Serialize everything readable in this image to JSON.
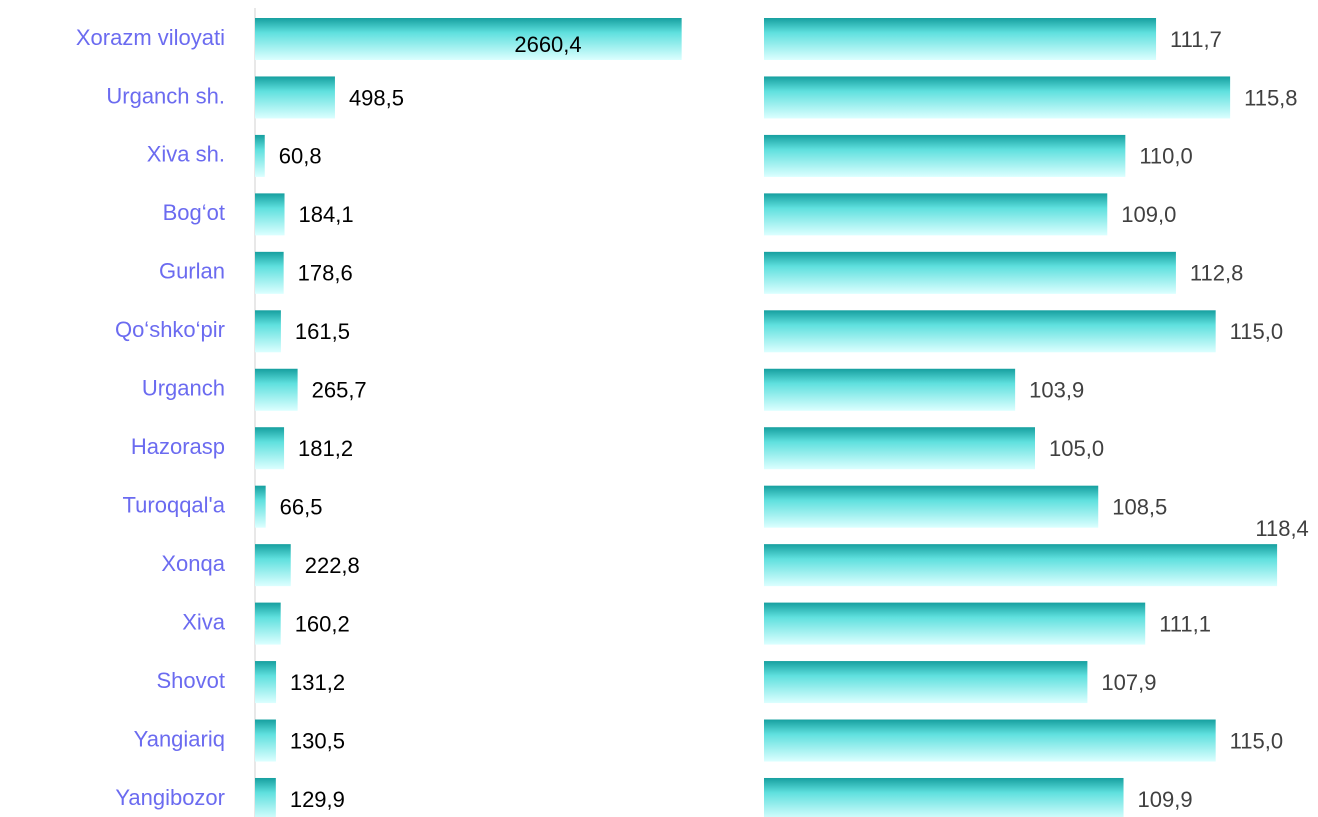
{
  "chart_data": [
    {
      "type": "bar",
      "orientation": "horizontal",
      "categories": [
        "Xorazm viloyati",
        "Urganch sh.",
        "Xiva sh.",
        "Bog‘ot",
        "Gurlan",
        "Qo‘shko‘pir",
        "Urganch",
        "Hazorasp",
        "Turoqqal'a",
        "Xonqa",
        "Xiva",
        "Shovot",
        "Yangiariq",
        "Yangibozor"
      ],
      "values": [
        2660.4,
        498.5,
        60.8,
        184.1,
        178.6,
        161.5,
        265.7,
        181.2,
        66.5,
        222.8,
        160.2,
        131.2,
        130.5,
        129.9
      ],
      "value_labels": [
        "2660,4",
        "498,5",
        "60,8",
        "184,1",
        "178,6",
        "161,5",
        "265,7",
        "181,2",
        "66,5",
        "222,8",
        "160,2",
        "131,2",
        "130,5",
        "129,9"
      ],
      "color": "#1aa8a8",
      "xlim": [
        0,
        2700
      ]
    },
    {
      "type": "bar",
      "orientation": "horizontal",
      "values": [
        111.7,
        115.8,
        110.0,
        109.0,
        112.8,
        115.0,
        103.9,
        105.0,
        108.5,
        118.4,
        111.1,
        107.9,
        115.0,
        109.9
      ],
      "value_labels": [
        "111,7",
        "115,8",
        "110,0",
        "109,0",
        "112,8",
        "115,0",
        "103,9",
        "105,0",
        "108,5",
        "118,4",
        "111,1",
        "107,9",
        "115,0",
        "109,9"
      ],
      "color": "#1aa8a8",
      "xlim": [
        90,
        120
      ]
    }
  ]
}
